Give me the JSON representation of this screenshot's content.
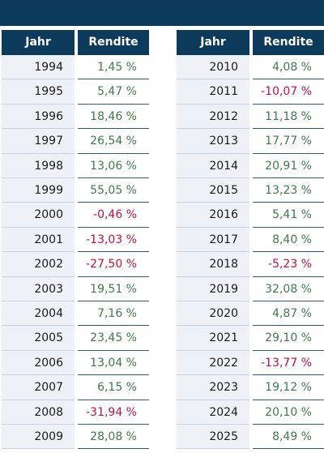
{
  "tables": [
    {
      "columns": [
        "Jahr",
        "Rendite"
      ],
      "rows": [
        [
          "1994",
          "1,45 %"
        ],
        [
          "1995",
          "5,47 %"
        ],
        [
          "1996",
          "18,46 %"
        ],
        [
          "1997",
          "26,54 %"
        ],
        [
          "1998",
          "13,06 %"
        ],
        [
          "1999",
          "55,05 %"
        ],
        [
          "2000",
          "-0,46 %"
        ],
        [
          "2001",
          "-13,03 %"
        ],
        [
          "2002",
          "-27,50 %"
        ],
        [
          "2003",
          "19,51 %"
        ],
        [
          "2004",
          "7,16 %"
        ],
        [
          "2005",
          "23,45 %"
        ],
        [
          "2006",
          "13,04 %"
        ],
        [
          "2007",
          "6,15 %"
        ],
        [
          "2008",
          "-31,94 %"
        ],
        [
          "2009",
          "28,08 %"
        ]
      ]
    },
    {
      "columns": [
        "Jahr",
        "Rendite"
      ],
      "rows": [
        [
          "2010",
          "4,08 %"
        ],
        [
          "2011",
          "-10,07 %"
        ],
        [
          "2012",
          "11,18 %"
        ],
        [
          "2013",
          "17,77 %"
        ],
        [
          "2014",
          "20,91 %"
        ],
        [
          "2015",
          "13,23 %"
        ],
        [
          "2016",
          "5,41 %"
        ],
        [
          "2017",
          "8,40 %"
        ],
        [
          "2018",
          "-5,23 %"
        ],
        [
          "2019",
          "32,08 %"
        ],
        [
          "2020",
          "4,87 %"
        ],
        [
          "2021",
          "29,10 %"
        ],
        [
          "2022",
          "-13,77 %"
        ],
        [
          "2023",
          "19,12 %"
        ],
        [
          "2024",
          "20,10 %"
        ],
        [
          "2025",
          "8,49 %"
        ]
      ]
    }
  ]
}
